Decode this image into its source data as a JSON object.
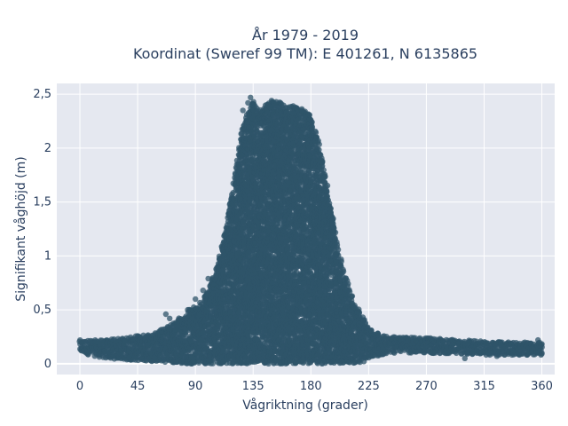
{
  "chart_data": {
    "type": "scatter",
    "title_line1": "År 1979 - 2019",
    "title_line2": "Koordinat (Sweref 99 TM): E 401261, N 6135865",
    "xlabel": "Vågriktning (grader)",
    "ylabel": "Signifikant våghöjd (m)",
    "xlim": [
      -18,
      370
    ],
    "ylim": [
      -0.1,
      2.6
    ],
    "x_ticks": [
      0,
      45,
      90,
      135,
      180,
      225,
      270,
      315,
      360
    ],
    "x_tick_labels": [
      "0",
      "45",
      "90",
      "135",
      "180",
      "225",
      "270",
      "315",
      "360"
    ],
    "y_ticks": [
      0,
      0.5,
      1,
      1.5,
      2,
      2.5
    ],
    "y_tick_labels": [
      "0",
      "0,5",
      "1",
      "1,5",
      "2",
      "2,5"
    ],
    "grid": true,
    "marker_color": "#2f5469",
    "background_color": "#e5e8f0",
    "envelope": {
      "x": [
        0,
        20,
        45,
        60,
        75,
        85,
        95,
        100,
        105,
        110,
        115,
        120,
        125,
        130,
        135,
        140,
        145,
        150,
        155,
        160,
        165,
        170,
        175,
        180,
        185,
        190,
        195,
        200,
        205,
        210,
        215,
        220,
        225,
        240,
        270,
        300,
        315,
        330,
        360
      ],
      "upper": [
        0.22,
        0.22,
        0.26,
        0.3,
        0.4,
        0.5,
        0.58,
        0.68,
        0.85,
        1.05,
        1.35,
        1.7,
        2.1,
        2.3,
        2.45,
        2.35,
        2.4,
        2.45,
        2.45,
        2.4,
        2.4,
        2.38,
        2.35,
        2.3,
        2.1,
        1.85,
        1.5,
        1.15,
        0.9,
        0.7,
        0.55,
        0.45,
        0.32,
        0.25,
        0.24,
        0.22,
        0.21,
        0.2,
        0.2
      ],
      "lower": [
        0.1,
        0.05,
        0.03,
        0.02,
        0.01,
        0.0,
        0.0,
        0.0,
        0.0,
        0.0,
        0.0,
        0.0,
        0.0,
        0.0,
        0.0,
        0.0,
        0.0,
        0.0,
        0.0,
        0.0,
        0.0,
        0.0,
        0.0,
        0.0,
        0.0,
        0.0,
        0.0,
        0.0,
        0.0,
        0.0,
        0.0,
        0.0,
        0.05,
        0.1,
        0.1,
        0.09,
        0.08,
        0.08,
        0.08
      ]
    },
    "outliers": [
      {
        "x": 67,
        "y": 0.46
      },
      {
        "x": 70,
        "y": 0.42
      },
      {
        "x": 84,
        "y": 0.5
      },
      {
        "x": 90,
        "y": 0.6
      },
      {
        "x": 96,
        "y": 0.68
      },
      {
        "x": 100,
        "y": 0.79
      },
      {
        "x": 127,
        "y": 2.35
      },
      {
        "x": 131,
        "y": 2.42
      },
      {
        "x": 133,
        "y": 2.47
      },
      {
        "x": 148,
        "y": 2.38
      },
      {
        "x": 153,
        "y": 2.43
      },
      {
        "x": 157,
        "y": 2.41
      },
      {
        "x": 163,
        "y": 2.38
      },
      {
        "x": 173,
        "y": 2.35
      },
      {
        "x": 227,
        "y": 0.31
      },
      {
        "x": 232,
        "y": 0.28
      },
      {
        "x": 245,
        "y": 0.1
      },
      {
        "x": 262,
        "y": 0.11
      },
      {
        "x": 300,
        "y": 0.05
      },
      {
        "x": 325,
        "y": 0.07
      },
      {
        "x": 357,
        "y": 0.22
      },
      {
        "x": 360,
        "y": 0.1
      }
    ]
  }
}
